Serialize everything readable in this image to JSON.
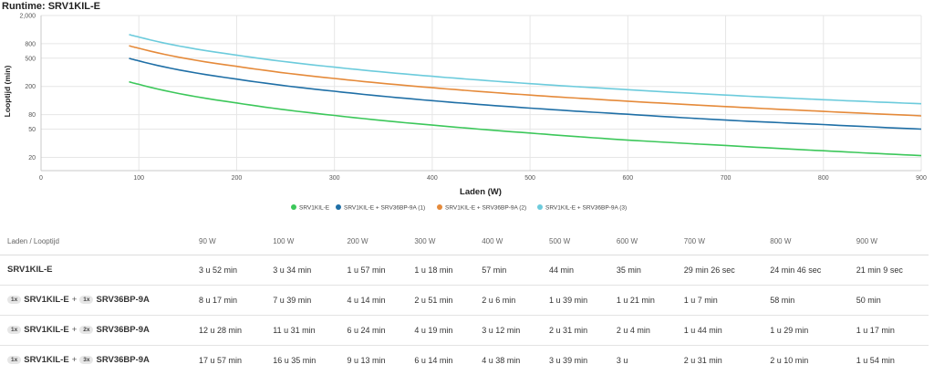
{
  "title": "Runtime: SRV1KIL-E",
  "chart_data": {
    "type": "line",
    "xlabel": "Laden (W)",
    "ylabel": "Looptijd (min)",
    "x_ticks": [
      0,
      100,
      200,
      300,
      400,
      500,
      600,
      700,
      800,
      900
    ],
    "y_ticks": [
      20,
      50,
      80,
      200,
      500,
      800,
      2000
    ],
    "y_tick_labels": [
      "20",
      "50",
      "80",
      "200",
      "500",
      "800",
      "2,000"
    ],
    "xlim": [
      0,
      900
    ],
    "ylim": [
      13,
      2000
    ],
    "yscale": "log",
    "legend_position": "bottom",
    "grid": true,
    "x": [
      90,
      100,
      200,
      300,
      400,
      500,
      600,
      700,
      800,
      900
    ],
    "series": [
      {
        "name": "SRV1KIL-E",
        "color": "#3cc75a",
        "values": [
          232,
          214,
          117,
          78,
          57,
          44,
          35,
          29.43,
          24.77,
          21.15
        ]
      },
      {
        "name": "SRV1KIL-E + SRV36BP-9A (1)",
        "color": "#1f6fa6",
        "values": [
          497,
          459,
          254,
          171,
          126,
          99,
          81,
          67,
          58,
          50
        ]
      },
      {
        "name": "SRV1KIL-E + SRV36BP-9A (2)",
        "color": "#e58a3a",
        "values": [
          748,
          691,
          384,
          259,
          192,
          151,
          124,
          104,
          89,
          77
        ]
      },
      {
        "name": "SRV1KIL-E + SRV36BP-9A (3)",
        "color": "#6ccbdc",
        "values": [
          1077,
          995,
          553,
          374,
          278,
          219,
          180,
          151,
          130,
          114
        ]
      }
    ]
  },
  "table": {
    "header_label": "Laden / Looptijd",
    "columns": [
      "90 W",
      "100 W",
      "200 W",
      "300 W",
      "400 W",
      "500 W",
      "600 W",
      "700 W",
      "800 W",
      "900 W"
    ],
    "rows": [
      {
        "model": "SRV1KIL-E",
        "plus": "",
        "qty1": "",
        "qty2": "",
        "model2": "",
        "cells": [
          "3 u 52 min",
          "3 u 34 min",
          "1 u 57 min",
          "1 u 18 min",
          "57 min",
          "44 min",
          "35 min",
          "29 min 26 sec",
          "24 min 46 sec",
          "21 min 9 sec"
        ]
      },
      {
        "model": "SRV1KIL-E",
        "plus": "+",
        "qty1": "1x",
        "qty2": "1x",
        "model2": "SRV36BP-9A",
        "cells": [
          "8 u 17 min",
          "7 u 39 min",
          "4 u 14 min",
          "2 u 51 min",
          "2 u 6 min",
          "1 u 39 min",
          "1 u 21 min",
          "1 u 7 min",
          "58 min",
          "50 min"
        ]
      },
      {
        "model": "SRV1KIL-E",
        "plus": "+",
        "qty1": "1x",
        "qty2": "2x",
        "model2": "SRV36BP-9A",
        "cells": [
          "12 u 28 min",
          "11 u 31 min",
          "6 u 24 min",
          "4 u 19 min",
          "3 u 12 min",
          "2 u 31 min",
          "2 u 4 min",
          "1 u 44 min",
          "1 u 29 min",
          "1 u 17 min"
        ]
      },
      {
        "model": "SRV1KIL-E",
        "plus": "+",
        "qty1": "1x",
        "qty2": "3x",
        "model2": "SRV36BP-9A",
        "cells": [
          "17 u 57 min",
          "16 u 35 min",
          "9 u 13 min",
          "6 u 14 min",
          "4 u 38 min",
          "3 u 39 min",
          "3 u",
          "2 u 31 min",
          "2 u 10 min",
          "1 u 54 min"
        ]
      }
    ]
  }
}
